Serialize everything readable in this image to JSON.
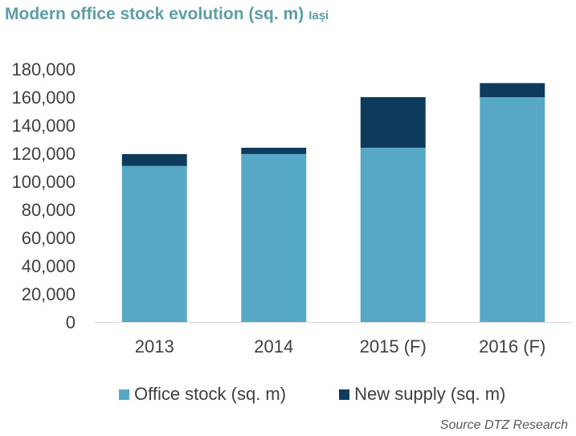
{
  "title": "Modern office stock evolution (sq. m)",
  "subtitle": "Iaşi",
  "source": "Source DTZ Research",
  "colors": {
    "office_stock": "#56a8c6",
    "new_supply": "#0e3a5c",
    "title": "#5b9ea6"
  },
  "legend": [
    {
      "label": "Office stock (sq. m)",
      "color": "#56a8c6"
    },
    {
      "label": "New supply (sq. m)",
      "color": "#0e3a5c"
    }
  ],
  "chart_data": {
    "type": "bar",
    "stacked": true,
    "categories": [
      "2013",
      "2014",
      "2015 (F)",
      "2016 (F)"
    ],
    "series": [
      {
        "name": "Office stock (sq. m)",
        "values": [
          111000,
          119500,
          124000,
          160000
        ]
      },
      {
        "name": "New supply (sq. m)",
        "values": [
          8500,
          4500,
          36000,
          10000
        ]
      }
    ],
    "ylim": [
      0,
      180000
    ],
    "yticks": [
      "0",
      "20,000",
      "40,000",
      "60,000",
      "80,000",
      "100,000",
      "120,000",
      "140,000",
      "160,000",
      "180,000"
    ],
    "grid": false,
    "legend_position": "bottom"
  }
}
